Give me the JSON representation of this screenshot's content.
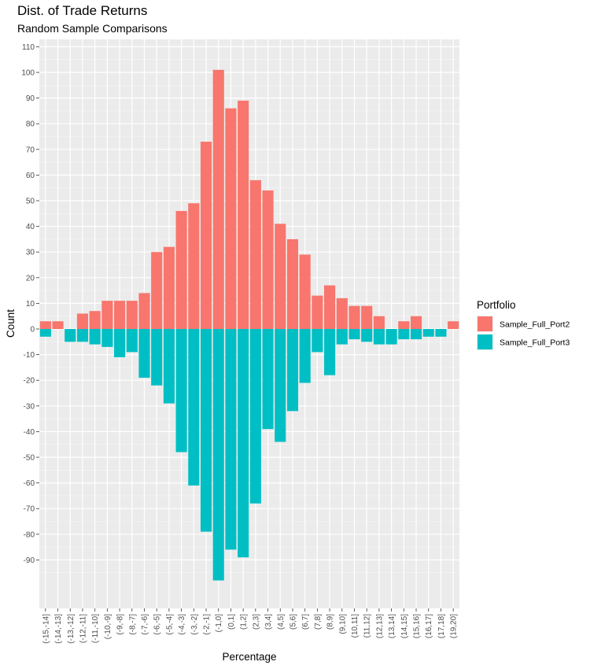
{
  "chart_data": {
    "type": "bar",
    "title": "Dist. of Trade Returns",
    "subtitle": "Random Sample Comparisons",
    "xlabel": "Percentage",
    "ylabel": "Count",
    "ylim": [
      -100,
      110
    ],
    "y_ticks": [
      110,
      100,
      90,
      80,
      70,
      60,
      50,
      40,
      30,
      20,
      10,
      0,
      -10,
      -20,
      -30,
      -40,
      -50,
      -60,
      -70,
      -80,
      -90
    ],
    "grid": true,
    "legend_title": "Portfolio",
    "legend_position": "right",
    "categories": [
      "(-15,-14]",
      "(-14,-13]",
      "(-13,-12]",
      "(-12,-11]",
      "(-11,-10]",
      "(-10,-9]",
      "(-9,-8]",
      "(-8,-7]",
      "(-7,-6]",
      "(-6,-5]",
      "(-5,-4]",
      "(-4,-3]",
      "(-3,-2]",
      "(-2,-1]",
      "(-1,0]",
      "(0,1]",
      "(1,2]",
      "(2,3]",
      "(3,4]",
      "(4,5]",
      "(5,6]",
      "(6,7]",
      "(7,8]",
      "(8,9]",
      "(9,10]",
      "(10,11]",
      "(11,12]",
      "(12,13]",
      "(13,14]",
      "(14,15]",
      "(15,16]",
      "(16,17]",
      "(17,18]",
      "(19,20]"
    ],
    "series": [
      {
        "name": "Sample_Full_Port2",
        "color": "#F8766D",
        "values": [
          3,
          3,
          0,
          6,
          7,
          11,
          11,
          11,
          14,
          30,
          32,
          46,
          49,
          73,
          101,
          86,
          89,
          58,
          54,
          41,
          35,
          29,
          13,
          17,
          12,
          9,
          9,
          5,
          0,
          3,
          5,
          0,
          0,
          3
        ]
      },
      {
        "name": "Sample_Full_Port3",
        "color": "#00BFC4",
        "values": [
          -3,
          0,
          -5,
          -5,
          -6,
          -7,
          -11,
          -9,
          -19,
          -22,
          -29,
          -48,
          -61,
          -79,
          -98,
          -86,
          -89,
          -68,
          -39,
          -44,
          -32,
          -21,
          -9,
          -18,
          -6,
          -4,
          -5,
          -6,
          -6,
          -4,
          -4,
          -3,
          -3,
          0
        ]
      }
    ]
  }
}
